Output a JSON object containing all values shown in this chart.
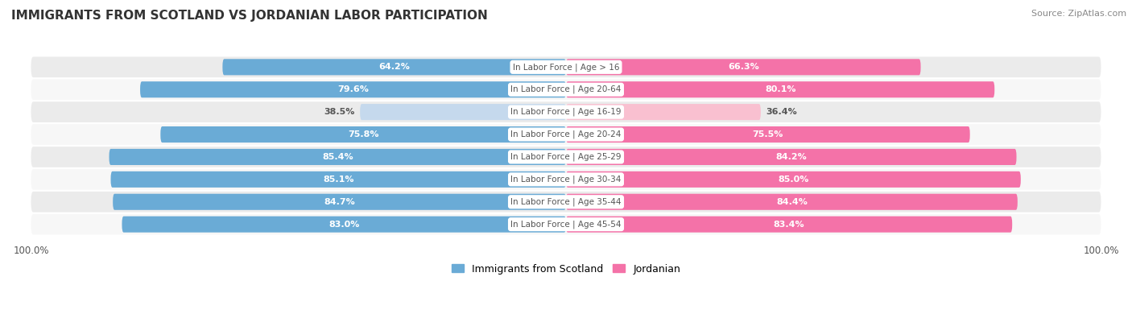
{
  "title": "IMMIGRANTS FROM SCOTLAND VS JORDANIAN LABOR PARTICIPATION",
  "source": "Source: ZipAtlas.com",
  "categories": [
    "In Labor Force | Age > 16",
    "In Labor Force | Age 20-64",
    "In Labor Force | Age 16-19",
    "In Labor Force | Age 20-24",
    "In Labor Force | Age 25-29",
    "In Labor Force | Age 30-34",
    "In Labor Force | Age 35-44",
    "In Labor Force | Age 45-54"
  ],
  "scotland_values": [
    64.2,
    79.6,
    38.5,
    75.8,
    85.4,
    85.1,
    84.7,
    83.0
  ],
  "jordan_values": [
    66.3,
    80.1,
    36.4,
    75.5,
    84.2,
    85.0,
    84.4,
    83.4
  ],
  "scotland_color_strong": "#6aabd6",
  "scotland_color_weak": "#c5d9ed",
  "jordan_color_strong": "#f472a8",
  "jordan_color_weak": "#f9c0d0",
  "label_color_white": "#ffffff",
  "label_color_dark": "#666666",
  "weak_threshold": 50,
  "bar_height": 0.72,
  "row_bg_even": "#ebebeb",
  "row_bg_odd": "#f7f7f7",
  "center_label_color": "#555555",
  "legend_scotland": "Immigrants from Scotland",
  "legend_jordan": "Jordanian",
  "max_val": 100,
  "scale": 100
}
